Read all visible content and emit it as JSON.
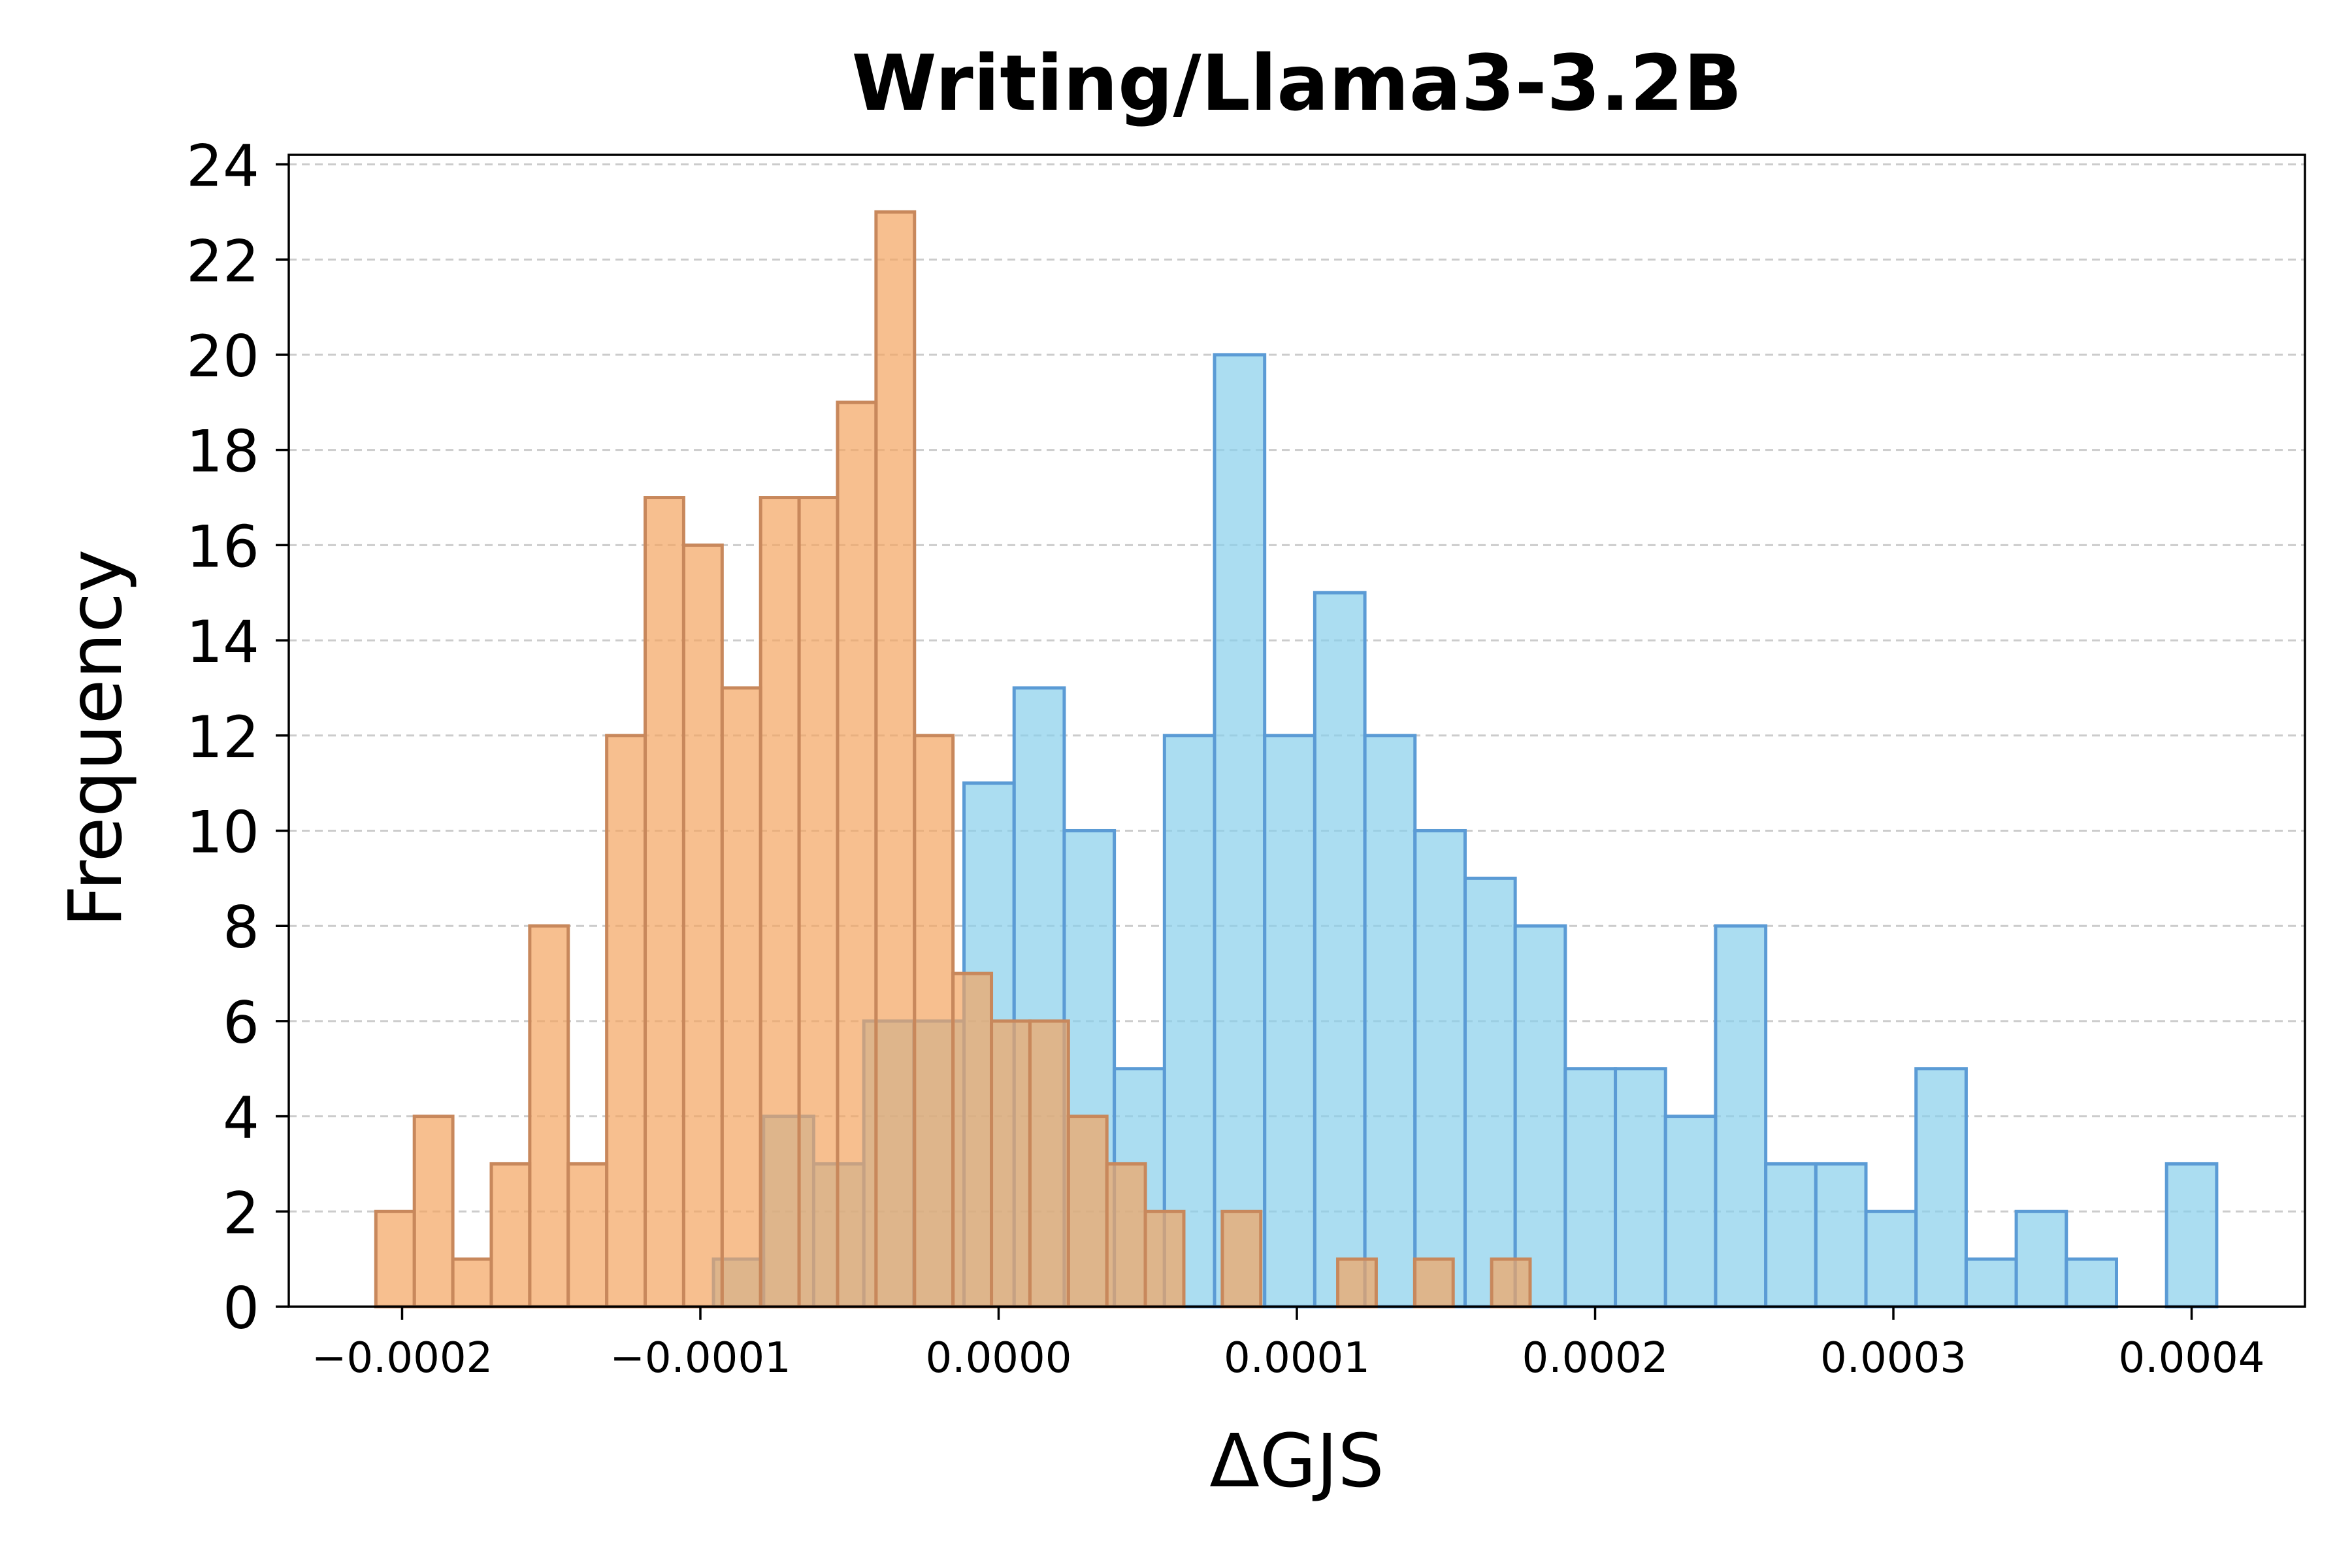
{
  "chart_data": {
    "type": "bar",
    "title": "Writing/Llama3-3.2B",
    "xlabel": "ΔGJS",
    "ylabel": "Frequency",
    "xlim": [
      -0.000238,
      0.000438
    ],
    "ylim": [
      0,
      24.2
    ],
    "x_ticks": [
      -0.0002,
      -0.0001,
      0.0,
      0.0001,
      0.0002,
      0.0003,
      0.0004
    ],
    "x_tick_labels": [
      "−0.0002",
      "−0.0001",
      "0.0000",
      "0.0001",
      "0.0002",
      "0.0003",
      "0.0004"
    ],
    "y_ticks": [
      0,
      2,
      4,
      6,
      8,
      10,
      12,
      14,
      16,
      18,
      20,
      22,
      24
    ],
    "y_tick_labels": [
      "0",
      "2",
      "4",
      "6",
      "8",
      "10",
      "12",
      "14",
      "16",
      "18",
      "20",
      "22",
      "24"
    ],
    "grid": "y-dashed",
    "series": [
      {
        "color": "#87ceeb",
        "edge_color": "#5b9bd5",
        "bin_start": -9.56e-05,
        "bin_width": 1.68e-05,
        "counts": [
          1,
          4,
          3,
          6,
          6,
          11,
          13,
          10,
          5,
          12,
          20,
          12,
          15,
          12,
          10,
          9,
          8,
          5,
          5,
          4,
          8,
          3,
          3,
          2,
          5,
          1,
          2,
          1,
          0,
          3
        ]
      },
      {
        "color": "#f4a460",
        "edge_color": "#c8885c",
        "bin_start": -0.0002088,
        "bin_width": 1.29e-05,
        "counts": [
          2,
          4,
          1,
          3,
          8,
          3,
          12,
          17,
          16,
          13,
          17,
          17,
          19,
          23,
          12,
          7,
          6,
          6,
          4,
          3,
          2,
          0,
          2,
          0,
          0,
          1,
          0,
          1,
          0,
          1
        ]
      }
    ]
  }
}
